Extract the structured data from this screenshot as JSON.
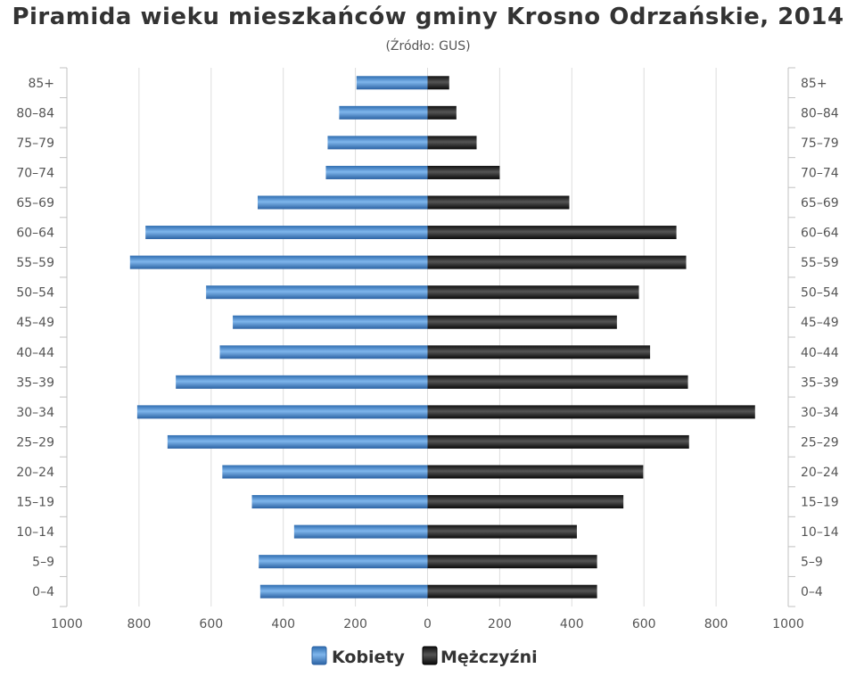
{
  "title": "Piramida wieku mieszkańców gminy Krosno Odrzańskie, 2014",
  "subtitle": "(Źródło: GUS)",
  "colors": {
    "female": "#4a8fd4",
    "male": "#222222",
    "grid": "#dddddd",
    "axis": "#c0c0c0",
    "text": "#555555"
  },
  "chart_data": {
    "type": "bar",
    "orientation": "horizontal",
    "layout": "population-pyramid",
    "title": "Piramida wieku mieszkańców gminy Krosno Odrzańskie, 2014",
    "subtitle": "(Źródło: GUS)",
    "categories": [
      "85+",
      "80-84",
      "75-79",
      "70-74",
      "65-69",
      "60-64",
      "55-59",
      "50-54",
      "45-49",
      "40-44",
      "35-39",
      "30-34",
      "25-29",
      "20-24",
      "15-19",
      "10-14",
      "5-9",
      "0-4"
    ],
    "category_tick_labels": [
      "85+",
      "80–84",
      "75–79",
      "70–74",
      "65–69",
      "60–64",
      "55–59",
      "50–54",
      "45–49",
      "40–44",
      "35–39",
      "30–34",
      "25–29",
      "20–24",
      "15–19",
      "10–14",
      "5–9",
      "0–4"
    ],
    "series": [
      {
        "name": "Kobiety",
        "side": "left",
        "color": "#4a8fd4",
        "values": [
          197,
          245,
          277,
          282,
          471,
          782,
          825,
          614,
          540,
          576,
          698,
          805,
          721,
          569,
          487,
          370,
          468,
          464
        ]
      },
      {
        "name": "Mężczyźni",
        "side": "right",
        "color": "#222222",
        "values": [
          60,
          80,
          136,
          200,
          393,
          690,
          717,
          586,
          525,
          617,
          722,
          908,
          725,
          598,
          543,
          414,
          470,
          470
        ]
      }
    ],
    "xlim": [
      -1000,
      1000
    ],
    "x_tick_values": [
      -1000,
      -800,
      -600,
      -400,
      -200,
      0,
      200,
      400,
      600,
      800,
      1000
    ],
    "x_tick_labels": [
      "1000",
      "800",
      "600",
      "400",
      "200",
      "0",
      "200",
      "400",
      "600",
      "800",
      "1000"
    ],
    "xlabel": "",
    "ylabel": "",
    "grid": true,
    "legend": "bottom-center"
  }
}
